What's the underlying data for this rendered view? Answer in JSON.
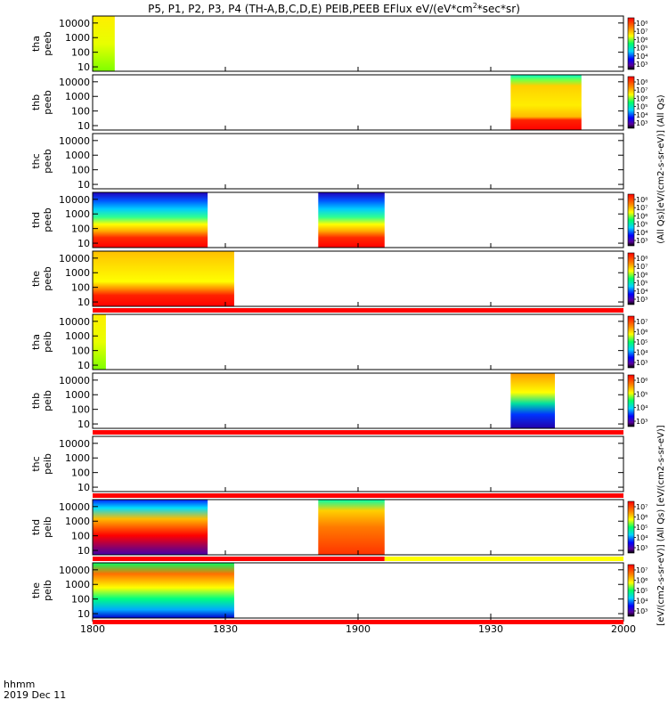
{
  "chart_data": {
    "type": "heatmap",
    "title": "P5, P1, P2, P3, P4 (TH-A,B,C,D,E) PEIB,PEEB EFlux eV/(eV*cm²*sec*sr)",
    "title_prefix": "P5, P1, P2, P3, P4 (TH-A,B,C,D,E) PEIB,PEEB EFlux eV/(eV*cm",
    "title_sup": "2",
    "title_suffix": "*sec*sr)",
    "x_axis": {
      "range": [
        "1800",
        "2000"
      ],
      "ticks": [
        "1800",
        "1830",
        "1900",
        "1930",
        "2000"
      ],
      "tick_minutes": [
        0,
        30,
        60,
        90,
        120
      ],
      "minutes_range": [
        0,
        120
      ],
      "label_line1": "hhmm",
      "label_line2": "2019 Dec 11"
    },
    "y_axis": {
      "scale": "log",
      "range": [
        5,
        30000
      ],
      "ticks": [
        10,
        100,
        1000,
        10000
      ],
      "tick_labels": [
        "10",
        "100",
        "1000",
        "10000"
      ]
    },
    "colorbar_label_top": "(All Qs)[eV/(cm2-s-sr-eV)] (All Qs)",
    "colorbar_label_bottom": "[eV/(cm2-s-sr-eV)] (All Qs) [eV/(cm2-s-sr-eV)]",
    "panels": [
      {
        "probe": "tha",
        "product": "peeb",
        "colorbar": [
          "10³",
          "10⁴",
          "10⁵",
          "10⁶",
          "10⁷",
          "10⁸"
        ],
        "blocks": [
          {
            "start": 0,
            "end": 5,
            "scheme": "edge_green"
          }
        ]
      },
      {
        "probe": "thb",
        "product": "peeb",
        "colorbar": [
          "10³",
          "10⁴",
          "10⁵",
          "10⁶",
          "10⁷",
          "10⁸"
        ],
        "blocks": [
          {
            "start": 94.5,
            "end": 110.5,
            "scheme": "yellow_red"
          }
        ]
      },
      {
        "probe": "thc",
        "product": "peeb",
        "colorbar": [],
        "blocks": []
      },
      {
        "probe": "thd",
        "product": "peeb",
        "colorbar": [
          "10³",
          "10⁴",
          "10⁵",
          "10⁶",
          "10⁷",
          "10⁸"
        ],
        "blocks": [
          {
            "start": 0,
            "end": 26,
            "scheme": "blue_red"
          },
          {
            "start": 51,
            "end": 66,
            "scheme": "blue_red"
          }
        ]
      },
      {
        "probe": "the",
        "product": "peeb",
        "colorbar": [
          "10³",
          "10⁴",
          "10⁵",
          "10⁶",
          "10⁷",
          "10⁸"
        ],
        "blocks": [
          {
            "start": 0,
            "end": 32,
            "scheme": "yellow_red_green"
          }
        ]
      },
      {
        "probe": "tha",
        "product": "peib",
        "colorbar": [
          "10³",
          "10⁴",
          "10⁵",
          "10⁶",
          "10⁷"
        ],
        "blocks": [
          {
            "start": 0,
            "end": 3,
            "scheme": "edge_green"
          }
        ]
      },
      {
        "probe": "thb",
        "product": "peib",
        "colorbar": [
          "10³",
          "10⁴",
          "10⁵",
          "10⁶"
        ],
        "blocks": [
          {
            "start": 94.5,
            "end": 104.5,
            "scheme": "yellow_blue"
          }
        ]
      },
      {
        "probe": "thc",
        "product": "peib",
        "colorbar": [],
        "blocks": []
      },
      {
        "probe": "thd",
        "product": "peib",
        "colorbar": [
          "10³",
          "10⁴",
          "10⁵",
          "10⁶",
          "10⁷"
        ],
        "blocks": [
          {
            "start": 0,
            "end": 26,
            "scheme": "red_dark"
          },
          {
            "start": 51,
            "end": 66,
            "scheme": "orange"
          }
        ]
      },
      {
        "probe": "the",
        "product": "peib",
        "colorbar": [
          "10³",
          "10⁴",
          "10⁵",
          "10⁶",
          "10⁷"
        ],
        "blocks": [
          {
            "start": 0,
            "end": 32,
            "scheme": "green_red"
          }
        ]
      }
    ],
    "bars": [
      {
        "after_panel": 4,
        "segments": [
          {
            "start": 0,
            "end": 120,
            "color": "#ff0000"
          }
        ]
      },
      {
        "after_panel": 6,
        "segments": [
          {
            "start": 0,
            "end": 120,
            "color": "#ff0000"
          }
        ]
      },
      {
        "after_panel": 7,
        "segments": [
          {
            "start": 0,
            "end": 120,
            "color": "#ff0000"
          }
        ]
      },
      {
        "after_panel": 8,
        "segments": [
          {
            "start": 0,
            "end": 66,
            "color": "#ff0000"
          },
          {
            "start": 66,
            "end": 120,
            "color": "#ffff00"
          }
        ]
      },
      {
        "after_panel": 9,
        "segments": [
          {
            "start": 0,
            "end": 120,
            "color": "#ff0000"
          }
        ]
      }
    ],
    "grid": false
  }
}
